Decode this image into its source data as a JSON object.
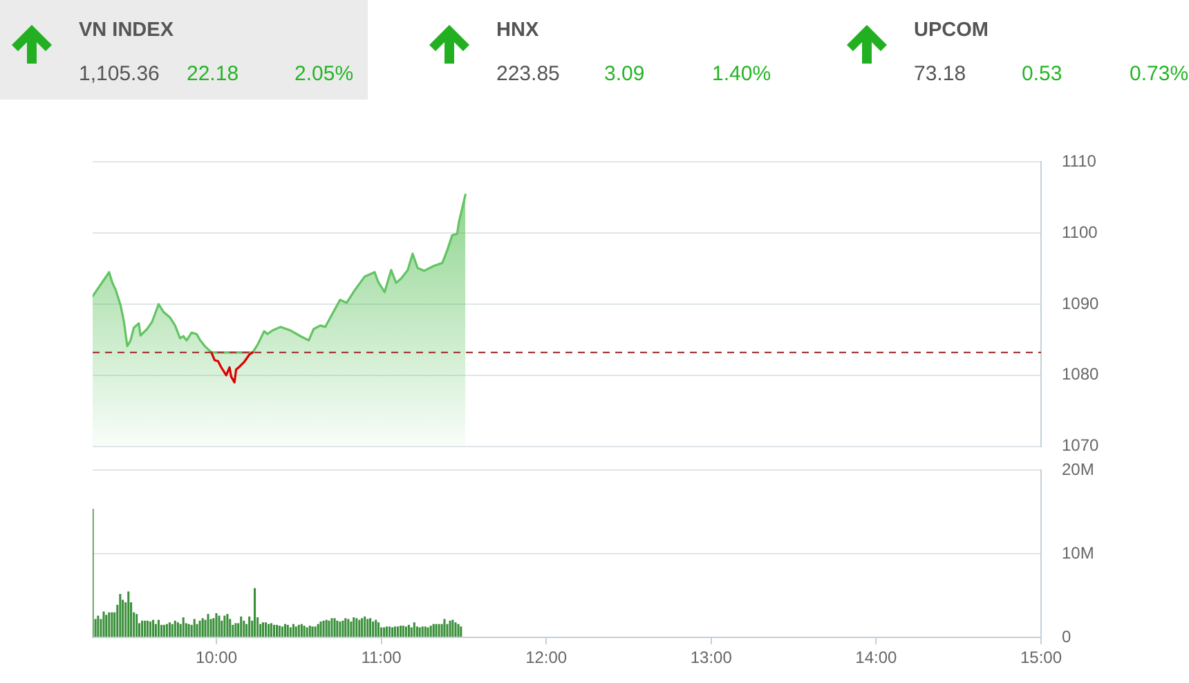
{
  "chart_data": [
    {
      "type": "other",
      "title": "VN INDEX",
      "annotations": [
        "1,105.36",
        "22.18",
        "2.05%"
      ]
    },
    {
      "type": "other",
      "title": "HNX",
      "annotations": [
        "223.85",
        "3.09",
        "1.40%"
      ]
    },
    {
      "type": "other",
      "title": "UPCOM",
      "annotations": [
        "73.18",
        "0.53",
        "0.73%"
      ]
    },
    {
      "type": "area",
      "x": [
        9.25,
        9.35,
        9.37,
        9.39,
        9.42,
        9.44,
        9.46,
        9.48,
        9.5,
        9.53,
        9.54,
        9.58,
        9.61,
        9.65,
        9.68,
        9.72,
        9.75,
        9.78,
        9.8,
        9.82,
        9.85,
        9.88,
        9.9,
        9.93,
        9.97,
        9.99,
        10.01,
        10.03,
        10.06,
        10.08,
        10.09,
        10.11,
        10.12,
        10.14,
        10.17,
        10.2,
        10.22,
        10.25,
        10.29,
        10.31,
        10.34,
        10.39,
        10.45,
        10.51,
        10.56,
        10.59,
        10.63,
        10.66,
        10.7,
        10.75,
        10.79,
        10.84,
        10.9,
        10.94,
        10.96,
        10.98,
        11.02,
        11.06,
        11.09,
        11.12,
        11.16,
        11.19,
        11.22,
        11.26,
        11.32,
        11.37,
        11.4,
        11.43,
        11.46,
        11.47,
        11.51
      ],
      "xlim": [
        9.25,
        15
      ],
      "ylim": [
        1070,
        1110
      ],
      "yticks": [
        1070,
        1080,
        1090,
        1100,
        1110
      ],
      "grid": "y",
      "tick_labels": "y",
      "ref_lines": [
        {
          "axis": "y",
          "value": 1083.2,
          "color": "#a33a3a",
          "line_style": "dashed"
        }
      ],
      "series": [
        {
          "type": "area",
          "color": "#62c462",
          "values": [
            1091.1,
            1094.5,
            1093.0,
            1092.0,
            1089.8,
            1087.5,
            1084.1,
            1084.9,
            1086.7,
            1087.3,
            1085.6,
            1086.5,
            1087.5,
            1090.0,
            1088.9,
            1088.1,
            1087.0,
            1085.2,
            1085.5,
            1084.9,
            1086.0,
            1085.8,
            1085.0,
            1084.1,
            1083.2,
            null,
            null,
            null,
            null,
            null,
            null,
            null,
            null,
            null,
            null,
            null,
            1083.2,
            1084.3,
            1086.2,
            1085.8,
            1086.3,
            1086.8,
            1086.3,
            1085.5,
            1084.9,
            1086.5,
            1087.0,
            1086.8,
            1088.5,
            1090.6,
            1090.2,
            1092.0,
            1093.9,
            1094.3,
            1094.5,
            1093.2,
            1091.7,
            1094.8,
            1093.0,
            1093.6,
            1094.8,
            1097.1,
            1095.1,
            1094.7,
            1095.4,
            1095.8,
            1097.6,
            1099.7,
            1099.9,
            1101.5,
            1105.4
          ]
        },
        {
          "type": "line",
          "color": "#dd0000",
          "values": [
            null,
            null,
            null,
            null,
            null,
            null,
            null,
            null,
            null,
            null,
            null,
            null,
            null,
            null,
            null,
            null,
            null,
            null,
            null,
            null,
            null,
            null,
            null,
            null,
            1083.2,
            1082.1,
            1082.0,
            1081.1,
            1080.0,
            1081.1,
            1079.8,
            1079.0,
            1080.8,
            1081.2,
            1081.9,
            1082.9,
            1083.2,
            null,
            null,
            null,
            null,
            null,
            null,
            null,
            null,
            null,
            null,
            null,
            null,
            null,
            null,
            null,
            null,
            null,
            null,
            null,
            null,
            null,
            null,
            null,
            null,
            null,
            null,
            null,
            null,
            null,
            null,
            null,
            null,
            null,
            null
          ]
        }
      ]
    },
    {
      "type": "bar",
      "x": [
        9.25,
        9.267,
        9.283,
        9.3,
        9.317,
        9.333,
        9.35,
        9.367,
        9.383,
        9.4,
        9.417,
        9.433,
        9.45,
        9.467,
        9.483,
        9.5,
        9.517,
        9.533,
        9.55,
        9.567,
        9.583,
        9.6,
        9.617,
        9.633,
        9.65,
        9.667,
        9.683,
        9.7,
        9.717,
        9.733,
        9.75,
        9.767,
        9.783,
        9.8,
        9.817,
        9.833,
        9.85,
        9.867,
        9.883,
        9.9,
        9.917,
        9.933,
        9.95,
        9.967,
        9.983,
        10,
        10.017,
        10.033,
        10.05,
        10.067,
        10.083,
        10.1,
        10.117,
        10.133,
        10.15,
        10.167,
        10.183,
        10.2,
        10.217,
        10.233,
        10.25,
        10.267,
        10.283,
        10.3,
        10.317,
        10.333,
        10.35,
        10.367,
        10.383,
        10.4,
        10.417,
        10.433,
        10.45,
        10.467,
        10.483,
        10.5,
        10.517,
        10.533,
        10.55,
        10.567,
        10.583,
        10.6,
        10.617,
        10.633,
        10.65,
        10.667,
        10.683,
        10.7,
        10.717,
        10.733,
        10.75,
        10.767,
        10.783,
        10.8,
        10.817,
        10.833,
        10.85,
        10.867,
        10.883,
        10.9,
        10.917,
        10.933,
        10.95,
        10.967,
        10.983,
        11,
        11.017,
        11.033,
        11.05,
        11.067,
        11.083,
        11.1,
        11.117,
        11.133,
        11.15,
        11.167,
        11.183,
        11.2,
        11.217,
        11.233,
        11.25,
        11.267,
        11.283,
        11.3,
        11.317,
        11.333,
        11.35,
        11.367,
        11.383,
        11.4,
        11.417,
        11.433,
        11.45,
        11.467,
        11.483
      ],
      "values": [
        15400000,
        2200000,
        2600000,
        2200000,
        3100000,
        2700000,
        3000000,
        3000000,
        3000000,
        3900000,
        5200000,
        4500000,
        4200000,
        5500000,
        4200000,
        3000000,
        2800000,
        1700000,
        2000000,
        2000000,
        2000000,
        1900000,
        2100000,
        1600000,
        2100000,
        1500000,
        1500000,
        1600000,
        1800000,
        1600000,
        2000000,
        1800000,
        1600000,
        2400000,
        1700000,
        1600000,
        1500000,
        2200000,
        1600000,
        2000000,
        2300000,
        2100000,
        2800000,
        2200000,
        2300000,
        2900000,
        2600000,
        2000000,
        2600000,
        2800000,
        2200000,
        1500000,
        1700000,
        1700000,
        2500000,
        2000000,
        1600000,
        2500000,
        2000000,
        5900000,
        2400000,
        1600000,
        1800000,
        1800000,
        1600000,
        1700000,
        1500000,
        1500000,
        1400000,
        1300000,
        1600000,
        1500000,
        1200000,
        1600000,
        1300000,
        1500000,
        1600000,
        1400000,
        1200000,
        1400000,
        1300000,
        1300000,
        1600000,
        1900000,
        2000000,
        2100000,
        2000000,
        2300000,
        2300000,
        2000000,
        1900000,
        2000000,
        2300000,
        2200000,
        1900000,
        2400000,
        2300000,
        2100000,
        2300000,
        2500000,
        2200000,
        2300000,
        1900000,
        2100000,
        1800000,
        1200000,
        1200000,
        1300000,
        1300000,
        1200000,
        1300000,
        1300000,
        1400000,
        1400000,
        1300000,
        1500000,
        1200000,
        1800000,
        1300000,
        1200000,
        1300000,
        1300000,
        1200000,
        1400000,
        1600000,
        1600000,
        1600000,
        1600000,
        2200000,
        1600000,
        2000000,
        2100000,
        1800000,
        1600000,
        1300000
      ],
      "color": "#3a8f3a",
      "xlim": [
        9.25,
        15
      ],
      "xticks": [
        {
          "value": 10,
          "label": "10:00"
        },
        {
          "value": 11,
          "label": "11:00"
        },
        {
          "value": 12,
          "label": "12:00"
        },
        {
          "value": 13,
          "label": "13:00"
        },
        {
          "value": 14,
          "label": "14:00"
        },
        {
          "value": 15,
          "label": "15:00"
        }
      ],
      "ylim": [
        0,
        20000000
      ],
      "yticks": [
        0,
        {
          "value": 10000000,
          "label": "10M"
        },
        {
          "value": 20000000,
          "label": "20M"
        }
      ],
      "grid": "y"
    }
  ]
}
